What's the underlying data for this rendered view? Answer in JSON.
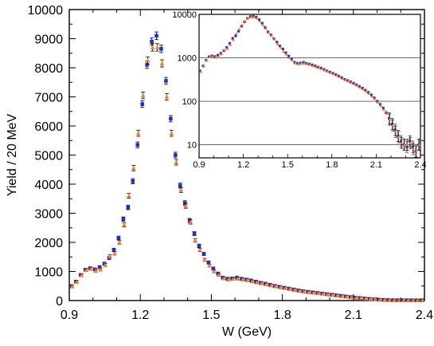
{
  "chart_data": [
    {
      "type": "scatter",
      "xlabel": "W (GeV)",
      "ylabel": "Yield / 20 MeV",
      "xlim": [
        0.9,
        2.4
      ],
      "ylim": [
        0,
        10000
      ],
      "x_ticks": [
        "0.9",
        "1.2",
        "1.5",
        "1.8",
        "2.1",
        "2.4"
      ],
      "y_ticks": [
        "0",
        "1000",
        "2000",
        "3000",
        "4000",
        "5000",
        "6000",
        "7000",
        "8000",
        "9000",
        "10000"
      ],
      "x_tick_values": [
        0.9,
        1.2,
        1.5,
        1.8,
        2.1,
        2.4
      ],
      "y_tick_values": [
        0,
        1000,
        2000,
        3000,
        4000,
        5000,
        6000,
        7000,
        8000,
        9000,
        10000
      ],
      "grid": false,
      "series": [
        {
          "color": "#1f2fd0",
          "marker": "square",
          "x": [
            0.91,
            0.93,
            0.95,
            0.97,
            0.99,
            1.01,
            1.03,
            1.05,
            1.07,
            1.09,
            1.11,
            1.13,
            1.15,
            1.17,
            1.19,
            1.21,
            1.23,
            1.25,
            1.27,
            1.29,
            1.31,
            1.33,
            1.35,
            1.37,
            1.39,
            1.41,
            1.43,
            1.45,
            1.47,
            1.49,
            1.51,
            1.53,
            1.55,
            1.57,
            1.59,
            1.61,
            1.63,
            1.65,
            1.67,
            1.69,
            1.71,
            1.73,
            1.75,
            1.77,
            1.79,
            1.81,
            1.83,
            1.85,
            1.87,
            1.89,
            1.91,
            1.93,
            1.95,
            1.97,
            1.99,
            2.01,
            2.03,
            2.05,
            2.07,
            2.09,
            2.11,
            2.13,
            2.15,
            2.17,
            2.19,
            2.21,
            2.23,
            2.25,
            2.27,
            2.29,
            2.31,
            2.33,
            2.35,
            2.37,
            2.39
          ],
          "y": [
            500,
            650,
            880,
            1060,
            1110,
            1070,
            1150,
            1270,
            1460,
            1740,
            2150,
            2800,
            3200,
            4100,
            5350,
            6750,
            8100,
            8900,
            9100,
            8650,
            7550,
            6250,
            5000,
            3950,
            3350,
            2750,
            2300,
            1880,
            1600,
            1310,
            1100,
            930,
            790,
            750,
            760,
            790,
            750,
            720,
            690,
            650,
            610,
            580,
            540,
            500,
            470,
            440,
            410,
            380,
            350,
            320,
            300,
            280,
            260,
            240,
            220,
            200,
            180,
            160,
            140,
            120,
            100,
            85,
            70,
            55,
            40,
            30,
            22,
            16,
            12,
            10,
            9,
            12,
            9,
            7,
            10
          ]
        },
        {
          "color": "#ff7a1a",
          "marker": "triangle",
          "x": [
            0.91,
            0.93,
            0.95,
            0.97,
            0.99,
            1.01,
            1.03,
            1.05,
            1.07,
            1.09,
            1.11,
            1.13,
            1.15,
            1.17,
            1.19,
            1.21,
            1.23,
            1.25,
            1.27,
            1.29,
            1.31,
            1.33,
            1.35,
            1.37,
            1.39,
            1.41,
            1.43,
            1.45,
            1.47,
            1.49,
            1.51,
            1.53,
            1.55,
            1.57,
            1.59,
            1.61,
            1.63,
            1.65,
            1.67,
            1.69,
            1.71,
            1.73,
            1.75,
            1.77,
            1.79,
            1.81,
            1.83,
            1.85,
            1.87,
            1.89,
            1.91,
            1.93,
            1.95,
            1.97,
            1.99,
            2.01,
            2.03,
            2.05,
            2.07,
            2.09,
            2.11,
            2.13,
            2.15,
            2.17,
            2.19,
            2.21,
            2.23,
            2.25,
            2.27,
            2.29,
            2.31,
            2.33,
            2.35,
            2.37,
            2.39
          ],
          "y": [
            480,
            640,
            870,
            1050,
            1090,
            1020,
            1060,
            1220,
            1520,
            1620,
            2000,
            2600,
            3600,
            4550,
            5750,
            7050,
            8250,
            8700,
            8700,
            8150,
            7000,
            5750,
            4750,
            3800,
            3250,
            2700,
            2070,
            1740,
            1400,
            1200,
            1000,
            880,
            760,
            720,
            740,
            750,
            720,
            700,
            660,
            620,
            590,
            560,
            520,
            490,
            455,
            425,
            395,
            365,
            335,
            310,
            290,
            270,
            250,
            230,
            210,
            190,
            170,
            150,
            130,
            115,
            95,
            80,
            65,
            52,
            38,
            28,
            20,
            15,
            11,
            10,
            10,
            11,
            8,
            7,
            10
          ]
        }
      ]
    },
    {
      "type": "scatter",
      "inset": true,
      "xlim": [
        0.9,
        2.4
      ],
      "ylim": [
        5,
        10000
      ],
      "y_scale": "log",
      "x_ticks": [
        "0.9",
        "1.2",
        "1.5",
        "1.8",
        "2.1",
        "2.4"
      ],
      "y_ticks": [
        "10",
        "100",
        "1000",
        "10000"
      ],
      "x_tick_values": [
        0.9,
        1.2,
        1.5,
        1.8,
        2.1,
        2.4
      ],
      "y_tick_values": [
        10,
        100,
        1000,
        10000
      ],
      "grid": "horizontal",
      "series_ref": "same series as main chart"
    }
  ]
}
